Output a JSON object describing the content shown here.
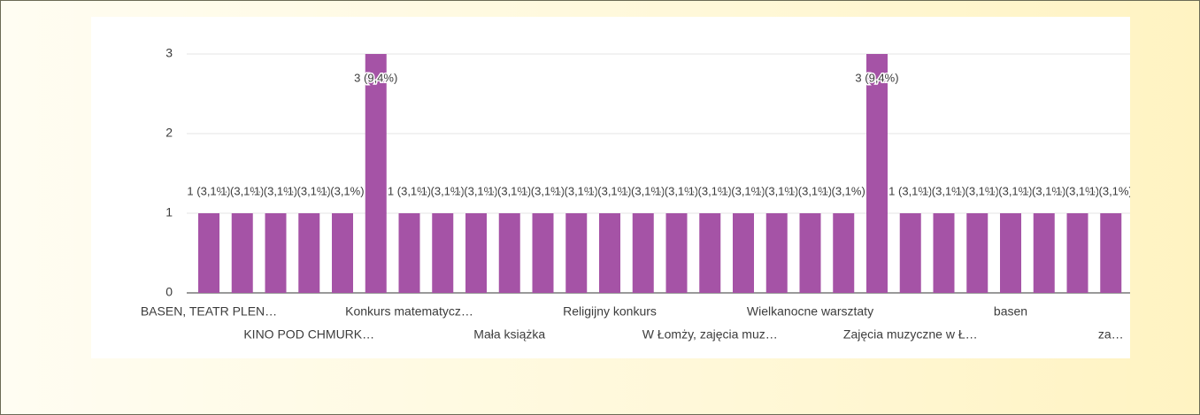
{
  "chart_data": {
    "type": "bar",
    "categories": [
      "BASEN, TEATR PLEN…",
      null,
      null,
      "KINO POD CHMURK…",
      null,
      null,
      "Konkurs matematycz…",
      null,
      null,
      "Mała książka",
      null,
      null,
      "Religijny konkurs",
      null,
      null,
      "W Łomży, zajęcia muz…",
      null,
      null,
      "Wielkanocne warsztaty",
      null,
      null,
      "Zajęcia muzyczne w Ł…",
      null,
      null,
      "basen",
      null,
      null,
      "za…"
    ],
    "values": [
      1,
      1,
      1,
      1,
      1,
      3,
      1,
      1,
      1,
      1,
      1,
      1,
      1,
      1,
      1,
      1,
      1,
      1,
      1,
      1,
      3,
      1,
      1,
      1,
      1,
      1,
      1,
      1
    ],
    "value_labels": [
      "1 (3,1%)",
      "1 (3,1%)",
      "1 (3,1%)",
      "1 (3,1%)",
      "1 (3,1%)",
      "3 (9,4%)",
      "1 (3,1%)",
      "1 (3,1%)",
      "1 (3,1%)",
      "1 (3,1%)",
      "1 (3,1%)",
      "1 (3,1%)",
      "1 (3,1%)",
      "1 (3,1%)",
      "1 (3,1%)",
      "1 (3,1%)",
      "1 (3,1%)",
      "1 (3,1%)",
      "1 (3,1%)",
      "1 (3,1%)",
      "3 (9,4%)",
      "1 (3,1%)",
      "1 (3,1%)",
      "1 (3,1%)",
      "1 (3,1%)",
      "1 (3,1%)",
      "1 (3,1%)",
      "1 (3,1%)"
    ],
    "color": "#a553a6",
    "ylim": [
      0,
      3
    ],
    "yticks": [
      0,
      1,
      2,
      3
    ],
    "grid": true
  }
}
